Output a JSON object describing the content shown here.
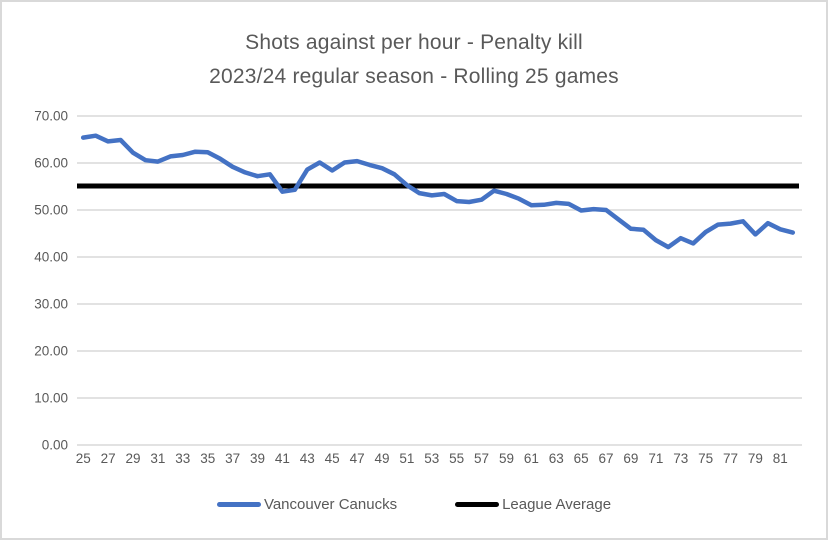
{
  "chart": {
    "title_line1": "Shots against per hour - Penalty kill",
    "title_line2": "2023/24 regular season - Rolling 25 games",
    "legend": {
      "items": [
        {
          "label": "Vancouver Canucks",
          "color": "#4472C4"
        },
        {
          "label": "League Average",
          "color": "#000000"
        }
      ]
    }
  },
  "colors": {
    "series_blue": "#4472C4",
    "series_black": "#000000",
    "gridline": "#d9d9d9",
    "axis_line": "#d9d9d9",
    "text_gray": "#595959",
    "border": "#d9d9d9",
    "background": "#ffffff"
  },
  "chart_data": {
    "type": "line",
    "title": "Shots against per hour - Penalty kill",
    "subtitle": "2023/24 regular season - Rolling 25 games",
    "xlabel": "",
    "ylabel": "",
    "x": [
      25,
      26,
      27,
      28,
      29,
      30,
      31,
      32,
      33,
      34,
      35,
      36,
      37,
      38,
      39,
      40,
      41,
      42,
      43,
      44,
      45,
      46,
      47,
      48,
      49,
      50,
      51,
      52,
      53,
      54,
      55,
      56,
      57,
      58,
      59,
      60,
      61,
      62,
      63,
      64,
      65,
      66,
      67,
      68,
      69,
      70,
      71,
      72,
      73,
      74,
      75,
      76,
      77,
      78,
      79,
      80,
      81,
      82
    ],
    "x_tick_labels": [
      "25",
      "27",
      "29",
      "31",
      "33",
      "35",
      "37",
      "39",
      "41",
      "43",
      "45",
      "47",
      "49",
      "51",
      "53",
      "55",
      "57",
      "59",
      "61",
      "63",
      "65",
      "67",
      "69",
      "71",
      "73",
      "75",
      "77",
      "79",
      "81"
    ],
    "y_tick_labels": [
      "0.00",
      "10.00",
      "20.00",
      "30.00",
      "40.00",
      "50.00",
      "60.00",
      "70.00"
    ],
    "ylim": [
      0,
      70
    ],
    "ytick_step": 10,
    "grid": true,
    "legend_position": "bottom",
    "series": [
      {
        "name": "Vancouver Canucks",
        "color": "#4472C4",
        "values": [
          65.4,
          65.8,
          64.6,
          64.9,
          62.2,
          60.6,
          60.3,
          61.4,
          61.7,
          62.4,
          62.3,
          60.9,
          59.2,
          58.0,
          57.2,
          57.6,
          53.9,
          54.3,
          58.6,
          60.1,
          58.4,
          60.1,
          60.4,
          59.6,
          58.9,
          57.6,
          55.3,
          53.6,
          53.1,
          53.4,
          51.9,
          51.7,
          52.2,
          54.1,
          53.4,
          52.4,
          51.0,
          51.1,
          51.5,
          51.3,
          49.9,
          50.2,
          50.0,
          48.0,
          46.0,
          45.8,
          43.6,
          42.1,
          44.0,
          42.9,
          45.3,
          46.9,
          47.1,
          47.6,
          44.8,
          47.2,
          45.9,
          45.2
        ]
      },
      {
        "name": "League Average",
        "color": "#000000",
        "style": "constant-line",
        "value": 55.1
      }
    ]
  }
}
